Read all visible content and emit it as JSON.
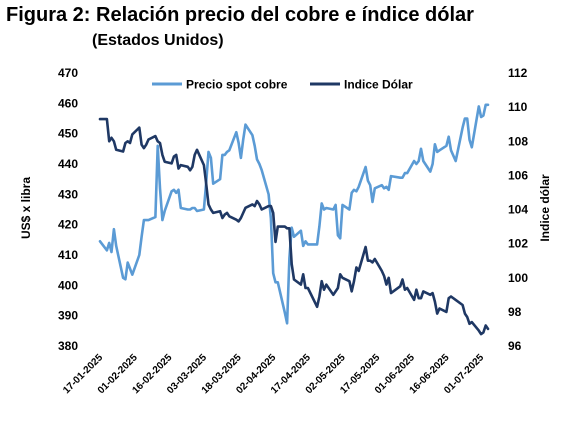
{
  "title": "Figura 2: Relación precio del cobre e índice dólar",
  "subtitle": "(Estados Unidos)",
  "chart_data": {
    "type": "line",
    "ylabel": "US$ x libra",
    "y2label": "Indice dólar",
    "ylim": [
      380,
      470
    ],
    "y2lim": [
      96,
      112
    ],
    "yticks": [
      380,
      390,
      400,
      410,
      420,
      430,
      440,
      450,
      460,
      470
    ],
    "y2ticks": [
      96,
      98,
      100,
      102,
      104,
      106,
      108,
      110,
      112
    ],
    "x_start": "17-01-2025",
    "x_end": "04-07-2025",
    "x_ticklabels": [
      "17-01-2025",
      "01-02-2025",
      "16-02-2025",
      "03-03-2025",
      "18-03-2025",
      "02-04-2025",
      "17-04-2025",
      "02-05-2025",
      "17-05-2025",
      "01-06-2025",
      "16-06-2025",
      "01-07-2025"
    ],
    "legend_position": "top",
    "grid": false,
    "series": [
      {
        "name": "Precio spot cobre",
        "axis": "left",
        "color": "#5b9bd5",
        "points": [
          [
            "17-01-2025",
            414.5
          ],
          [
            "20-01-2025",
            411.5
          ],
          [
            "21-01-2025",
            414
          ],
          [
            "22-01-2025",
            411
          ],
          [
            "23-01-2025",
            418.5
          ],
          [
            "24-01-2025",
            413
          ],
          [
            "27-01-2025",
            402.5
          ],
          [
            "28-01-2025",
            402
          ],
          [
            "29-01-2025",
            407.5
          ],
          [
            "30-01-2025",
            405.5
          ],
          [
            "31-01-2025",
            403.5
          ],
          [
            "03-02-2025",
            410
          ],
          [
            "04-02-2025",
            416
          ],
          [
            "05-02-2025",
            421.5
          ],
          [
            "06-02-2025",
            421.5
          ],
          [
            "07-02-2025",
            421.5
          ],
          [
            "10-02-2025",
            422.5
          ],
          [
            "11-02-2025",
            446
          ],
          [
            "12-02-2025",
            432
          ],
          [
            "13-02-2025",
            421.5
          ],
          [
            "14-02-2025",
            424.5
          ],
          [
            "17-02-2025",
            431
          ],
          [
            "18-02-2025",
            431.5
          ],
          [
            "19-02-2025",
            430.5
          ],
          [
            "20-02-2025",
            431.5
          ],
          [
            "21-02-2025",
            425.5
          ],
          [
            "24-02-2025",
            425
          ],
          [
            "25-02-2025",
            425
          ],
          [
            "26-02-2025",
            425.5
          ],
          [
            "27-02-2025",
            425.5
          ],
          [
            "28-02-2025",
            424.5
          ],
          [
            "03-03-2025",
            425
          ],
          [
            "04-03-2025",
            434
          ],
          [
            "05-03-2025",
            444
          ],
          [
            "06-03-2025",
            442
          ],
          [
            "07-03-2025",
            433.5
          ],
          [
            "10-03-2025",
            435
          ],
          [
            "11-03-2025",
            443
          ],
          [
            "12-03-2025",
            443
          ],
          [
            "13-03-2025",
            444
          ],
          [
            "14-03-2025",
            444.5
          ],
          [
            "17-03-2025",
            450.5
          ],
          [
            "18-03-2025",
            447
          ],
          [
            "19-03-2025",
            442
          ],
          [
            "20-03-2025",
            448
          ],
          [
            "21-03-2025",
            453
          ],
          [
            "24-03-2025",
            449.5
          ],
          [
            "25-03-2025",
            446
          ],
          [
            "26-03-2025",
            441.5
          ],
          [
            "27-03-2025",
            440
          ],
          [
            "28-03-2025",
            438
          ],
          [
            "31-03-2025",
            430
          ],
          [
            "01-04-2025",
            422
          ],
          [
            "02-04-2025",
            404
          ],
          [
            "03-04-2025",
            401
          ],
          [
            "04-04-2025",
            401
          ],
          [
            "07-04-2025",
            391
          ],
          [
            "08-04-2025",
            387.5
          ],
          [
            "09-04-2025",
            409
          ],
          [
            "10-04-2025",
            419
          ],
          [
            "11-04-2025",
            416
          ],
          [
            "14-04-2025",
            418
          ],
          [
            "15-04-2025",
            413
          ],
          [
            "16-04-2025",
            414.5
          ],
          [
            "17-04-2025",
            413.5
          ],
          [
            "21-04-2025",
            413.5
          ],
          [
            "22-04-2025",
            419.5
          ],
          [
            "23-04-2025",
            427
          ],
          [
            "24-04-2025",
            425
          ],
          [
            "25-04-2025",
            425.5
          ],
          [
            "28-04-2025",
            425
          ],
          [
            "29-04-2025",
            426.5
          ],
          [
            "30-04-2025",
            416.5
          ],
          [
            "01-05-2025",
            415.5
          ],
          [
            "02-05-2025",
            426.5
          ],
          [
            "05-05-2025",
            425
          ],
          [
            "06-05-2025",
            430.5
          ],
          [
            "07-05-2025",
            431.5
          ],
          [
            "08-05-2025",
            431
          ],
          [
            "09-05-2025",
            432.5
          ],
          [
            "12-05-2025",
            439
          ],
          [
            "13-05-2025",
            434.5
          ],
          [
            "14-05-2025",
            433
          ],
          [
            "15-05-2025",
            427.5
          ],
          [
            "16-05-2025",
            432
          ],
          [
            "19-05-2025",
            433
          ],
          [
            "20-05-2025",
            432
          ],
          [
            "21-05-2025",
            432.5
          ],
          [
            "22-05-2025",
            431.5
          ],
          [
            "23-05-2025",
            436
          ],
          [
            "27-05-2025",
            435.5
          ],
          [
            "28-05-2025",
            435.5
          ],
          [
            "29-05-2025",
            437
          ],
          [
            "30-05-2025",
            437
          ],
          [
            "02-06-2025",
            441
          ],
          [
            "03-06-2025",
            440
          ],
          [
            "04-06-2025",
            441
          ],
          [
            "05-06-2025",
            445
          ],
          [
            "06-06-2025",
            441
          ],
          [
            "09-06-2025",
            437.5
          ],
          [
            "10-06-2025",
            440
          ],
          [
            "11-06-2025",
            446.5
          ],
          [
            "12-06-2025",
            444
          ],
          [
            "13-06-2025",
            444.5
          ],
          [
            "16-06-2025",
            446
          ],
          [
            "17-06-2025",
            449
          ],
          [
            "18-06-2025",
            444.5
          ],
          [
            "20-06-2025",
            441
          ],
          [
            "23-06-2025",
            452
          ],
          [
            "24-06-2025",
            455
          ],
          [
            "25-06-2025",
            455
          ],
          [
            "26-06-2025",
            448
          ],
          [
            "27-06-2025",
            445.5
          ],
          [
            "30-06-2025",
            459
          ],
          [
            "01-07-2025",
            455.5
          ],
          [
            "02-07-2025",
            456
          ],
          [
            "03-07-2025",
            459.5
          ],
          [
            "04-07-2025",
            459.5
          ]
        ]
      },
      {
        "name": "Indice Dólar",
        "axis": "right",
        "color": "#1f3864",
        "points": [
          [
            "17-01-2025",
            109.3
          ],
          [
            "20-01-2025",
            109.3
          ],
          [
            "21-01-2025",
            108.0
          ],
          [
            "22-01-2025",
            108.2
          ],
          [
            "23-01-2025",
            108.0
          ],
          [
            "24-01-2025",
            107.5
          ],
          [
            "27-01-2025",
            107.4
          ],
          [
            "28-01-2025",
            107.9
          ],
          [
            "29-01-2025",
            108.0
          ],
          [
            "30-01-2025",
            107.9
          ],
          [
            "31-01-2025",
            108.4
          ],
          [
            "03-02-2025",
            108.8
          ],
          [
            "04-02-2025",
            107.8
          ],
          [
            "05-02-2025",
            107.6
          ],
          [
            "06-02-2025",
            107.8
          ],
          [
            "07-02-2025",
            108.1
          ],
          [
            "10-02-2025",
            108.3
          ],
          [
            "11-02-2025",
            108.0
          ],
          [
            "12-02-2025",
            107.9
          ],
          [
            "13-02-2025",
            107.2
          ],
          [
            "14-02-2025",
            106.8
          ],
          [
            "17-02-2025",
            106.7
          ],
          [
            "18-02-2025",
            107.1
          ],
          [
            "19-02-2025",
            107.2
          ],
          [
            "20-02-2025",
            106.4
          ],
          [
            "21-02-2025",
            106.6
          ],
          [
            "24-02-2025",
            106.5
          ],
          [
            "25-02-2025",
            106.3
          ],
          [
            "26-02-2025",
            106.5
          ],
          [
            "27-02-2025",
            107.2
          ],
          [
            "28-02-2025",
            107.5
          ],
          [
            "03-03-2025",
            106.6
          ],
          [
            "04-03-2025",
            105.5
          ],
          [
            "05-03-2025",
            104.3
          ],
          [
            "06-03-2025",
            104.0
          ],
          [
            "07-03-2025",
            103.8
          ],
          [
            "10-03-2025",
            103.9
          ],
          [
            "11-03-2025",
            103.5
          ],
          [
            "12-03-2025",
            103.7
          ],
          [
            "13-03-2025",
            103.8
          ],
          [
            "14-03-2025",
            103.6
          ],
          [
            "17-03-2025",
            103.4
          ],
          [
            "18-03-2025",
            103.3
          ],
          [
            "19-03-2025",
            103.5
          ],
          [
            "20-03-2025",
            103.8
          ],
          [
            "21-03-2025",
            104.1
          ],
          [
            "24-03-2025",
            104.3
          ],
          [
            "25-03-2025",
            104.2
          ],
          [
            "26-03-2025",
            104.5
          ],
          [
            "27-03-2025",
            104.3
          ],
          [
            "28-03-2025",
            104.0
          ],
          [
            "31-03-2025",
            104.2
          ],
          [
            "01-04-2025",
            104.2
          ],
          [
            "02-04-2025",
            103.8
          ],
          [
            "03-04-2025",
            102.1
          ],
          [
            "04-04-2025",
            103.0
          ],
          [
            "07-04-2025",
            103.0
          ],
          [
            "08-04-2025",
            102.9
          ],
          [
            "09-04-2025",
            102.9
          ],
          [
            "10-04-2025",
            100.8
          ],
          [
            "11-04-2025",
            99.9
          ],
          [
            "14-04-2025",
            99.6
          ],
          [
            "15-04-2025",
            100.2
          ],
          [
            "16-04-2025",
            99.4
          ],
          [
            "17-04-2025",
            99.4
          ],
          [
            "21-04-2025",
            98.3
          ],
          [
            "22-04-2025",
            98.9
          ],
          [
            "23-04-2025",
            99.8
          ],
          [
            "24-04-2025",
            99.3
          ],
          [
            "25-04-2025",
            99.6
          ],
          [
            "28-04-2025",
            99.0
          ],
          [
            "29-04-2025",
            99.2
          ],
          [
            "30-04-2025",
            99.4
          ],
          [
            "01-05-2025",
            100.2
          ],
          [
            "02-05-2025",
            100.0
          ],
          [
            "05-05-2025",
            99.8
          ],
          [
            "06-05-2025",
            99.2
          ],
          [
            "07-05-2025",
            99.8
          ],
          [
            "08-05-2025",
            100.6
          ],
          [
            "09-05-2025",
            100.4
          ],
          [
            "12-05-2025",
            101.8
          ],
          [
            "13-05-2025",
            101.0
          ],
          [
            "14-05-2025",
            101.0
          ],
          [
            "15-05-2025",
            100.9
          ],
          [
            "16-05-2025",
            101.1
          ],
          [
            "19-05-2025",
            100.4
          ],
          [
            "20-05-2025",
            100.1
          ],
          [
            "21-05-2025",
            99.6
          ],
          [
            "22-05-2025",
            100.0
          ],
          [
            "23-05-2025",
            99.1
          ],
          [
            "27-05-2025",
            99.5
          ],
          [
            "28-05-2025",
            99.9
          ],
          [
            "29-05-2025",
            99.3
          ],
          [
            "30-05-2025",
            99.4
          ],
          [
            "02-06-2025",
            98.7
          ],
          [
            "03-06-2025",
            99.3
          ],
          [
            "04-06-2025",
            98.8
          ],
          [
            "05-06-2025",
            98.8
          ],
          [
            "06-06-2025",
            99.2
          ],
          [
            "09-06-2025",
            99.0
          ],
          [
            "10-06-2025",
            99.1
          ],
          [
            "11-06-2025",
            98.6
          ],
          [
            "12-06-2025",
            97.9
          ],
          [
            "13-06-2025",
            98.2
          ],
          [
            "16-06-2025",
            98.0
          ],
          [
            "17-06-2025",
            98.8
          ],
          [
            "18-06-2025",
            98.9
          ],
          [
            "20-06-2025",
            98.7
          ],
          [
            "23-06-2025",
            98.4
          ],
          [
            "24-06-2025",
            97.9
          ],
          [
            "25-06-2025",
            97.7
          ],
          [
            "26-06-2025",
            97.3
          ],
          [
            "27-06-2025",
            97.4
          ],
          [
            "30-06-2025",
            96.9
          ],
          [
            "01-07-2025",
            96.7
          ],
          [
            "02-07-2025",
            96.8
          ],
          [
            "03-07-2025",
            97.2
          ],
          [
            "04-07-2025",
            97.0
          ]
        ]
      }
    ]
  }
}
